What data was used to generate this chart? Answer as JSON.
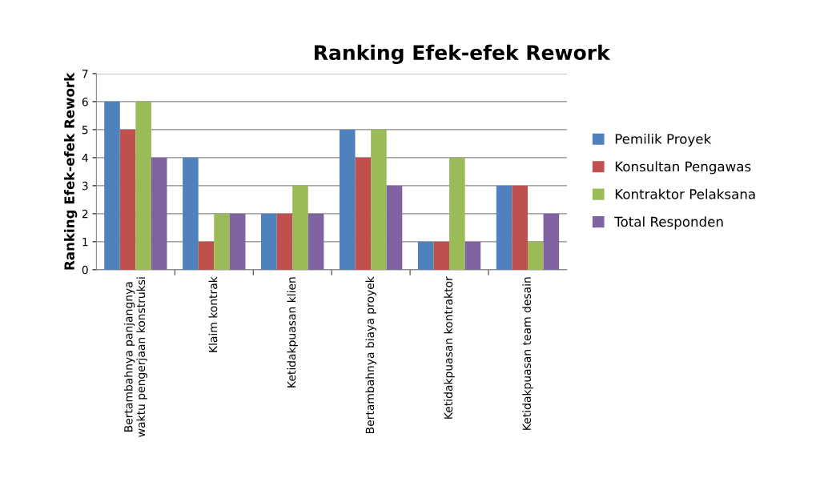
{
  "chart_data": {
    "type": "bar",
    "title": "Ranking Efek-efek Rework",
    "ylabel": "Ranking Efek-efek Rework",
    "categories": [
      "Bertambahnya panjangnya\nwaktu pengerjaan konstruksi",
      "Klaim kontrak",
      "Ketidakpuasan klien",
      "Bertambahnya biaya proyek",
      "Ketidakpuasan kontraktor",
      "Ketidakpuasan team desain"
    ],
    "series": [
      {
        "name": "Pemilik Proyek",
        "color": "#4f81bd",
        "values": [
          6,
          4,
          2,
          5,
          1,
          3
        ]
      },
      {
        "name": "Konsultan Pengawas",
        "color": "#c0504d",
        "values": [
          5,
          1,
          2,
          4,
          1,
          3
        ]
      },
      {
        "name": "Kontraktor Pelaksana",
        "color": "#9bbb59",
        "values": [
          6,
          2,
          3,
          5,
          4,
          1
        ]
      },
      {
        "name": "Total Responden",
        "color": "#8064a2",
        "values": [
          4,
          2,
          2,
          3,
          1,
          2
        ]
      }
    ],
    "ylim": [
      0,
      7
    ],
    "yticks": [
      0,
      1,
      2,
      3,
      4,
      5,
      6,
      7
    ],
    "grid": "y",
    "legend": "right"
  }
}
